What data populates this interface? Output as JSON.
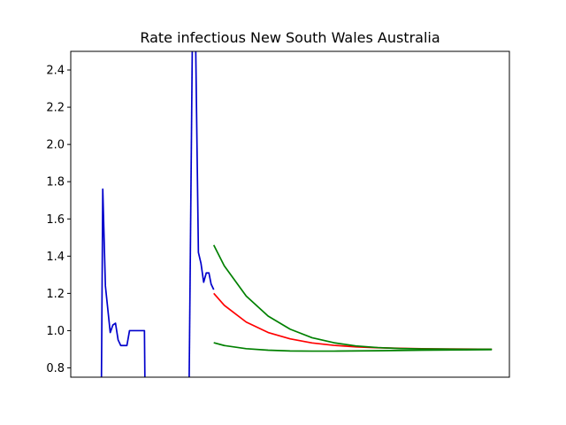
{
  "chart_data": {
    "type": "line",
    "title": "Rate infectious New South Wales Australia",
    "xlabel": "",
    "ylabel": "",
    "xlim": [
      0,
      100
    ],
    "ylim": [
      0.75,
      2.5
    ],
    "yticks": [
      0.8,
      1.0,
      1.2,
      1.4,
      1.6,
      1.8,
      2.0,
      2.2,
      2.4
    ],
    "ytick_labels": [
      "0.8",
      "1.0",
      "1.2",
      "1.4",
      "1.6",
      "1.8",
      "2.0",
      "2.2",
      "2.4"
    ],
    "xticks": [],
    "grid": false,
    "legend": "none",
    "series": [
      {
        "color": "#0000cc",
        "segments": [
          [
            [
              7.0,
              0.75
            ],
            [
              7.3,
              1.76
            ],
            [
              7.9,
              1.24
            ],
            [
              9.0,
              0.99
            ],
            [
              9.6,
              1.03
            ],
            [
              10.2,
              1.04
            ],
            [
              10.8,
              0.95
            ],
            [
              11.4,
              0.92
            ],
            [
              12.8,
              0.92
            ],
            [
              13.4,
              1.0
            ],
            [
              16.8,
              1.0
            ],
            [
              16.9,
              0.75
            ]
          ],
          [
            [
              27.0,
              0.75
            ],
            [
              27.7,
              2.5
            ]
          ],
          [
            [
              28.5,
              2.5
            ],
            [
              29.1,
              1.42
            ],
            [
              29.7,
              1.36
            ],
            [
              30.3,
              1.26
            ],
            [
              30.9,
              1.31
            ],
            [
              31.5,
              1.31
            ],
            [
              32.0,
              1.25
            ],
            [
              32.6,
              1.22
            ]
          ]
        ]
      },
      {
        "color": "#ff0000",
        "segments": [
          [
            [
              32.6,
              1.2
            ],
            [
              35,
              1.136
            ],
            [
              40,
              1.046
            ],
            [
              45,
              0.99
            ],
            [
              50,
              0.956
            ],
            [
              55,
              0.934
            ],
            [
              60,
              0.921
            ],
            [
              65,
              0.913
            ],
            [
              70,
              0.908
            ],
            [
              75,
              0.905
            ],
            [
              80,
              0.903
            ],
            [
              85,
              0.902
            ],
            [
              90,
              0.901
            ],
            [
              96,
              0.9
            ]
          ]
        ]
      },
      {
        "color": "#008000",
        "segments": [
          [
            [
              32.6,
              1.46
            ],
            [
              35,
              1.348
            ],
            [
              40,
              1.186
            ],
            [
              45,
              1.078
            ],
            [
              50,
              1.008
            ],
            [
              55,
              0.962
            ],
            [
              60,
              0.935
            ],
            [
              65,
              0.918
            ],
            [
              70,
              0.909
            ],
            [
              75,
              0.904
            ],
            [
              80,
              0.902
            ],
            [
              85,
              0.901
            ],
            [
              90,
              0.9
            ],
            [
              96,
              0.9
            ]
          ],
          [
            [
              32.6,
              0.935
            ],
            [
              35,
              0.92
            ],
            [
              40,
              0.903
            ],
            [
              45,
              0.895
            ],
            [
              50,
              0.891
            ],
            [
              55,
              0.89
            ],
            [
              60,
              0.89
            ],
            [
              70,
              0.892
            ],
            [
              80,
              0.895
            ],
            [
              90,
              0.897
            ],
            [
              96,
              0.898
            ]
          ]
        ]
      }
    ]
  }
}
